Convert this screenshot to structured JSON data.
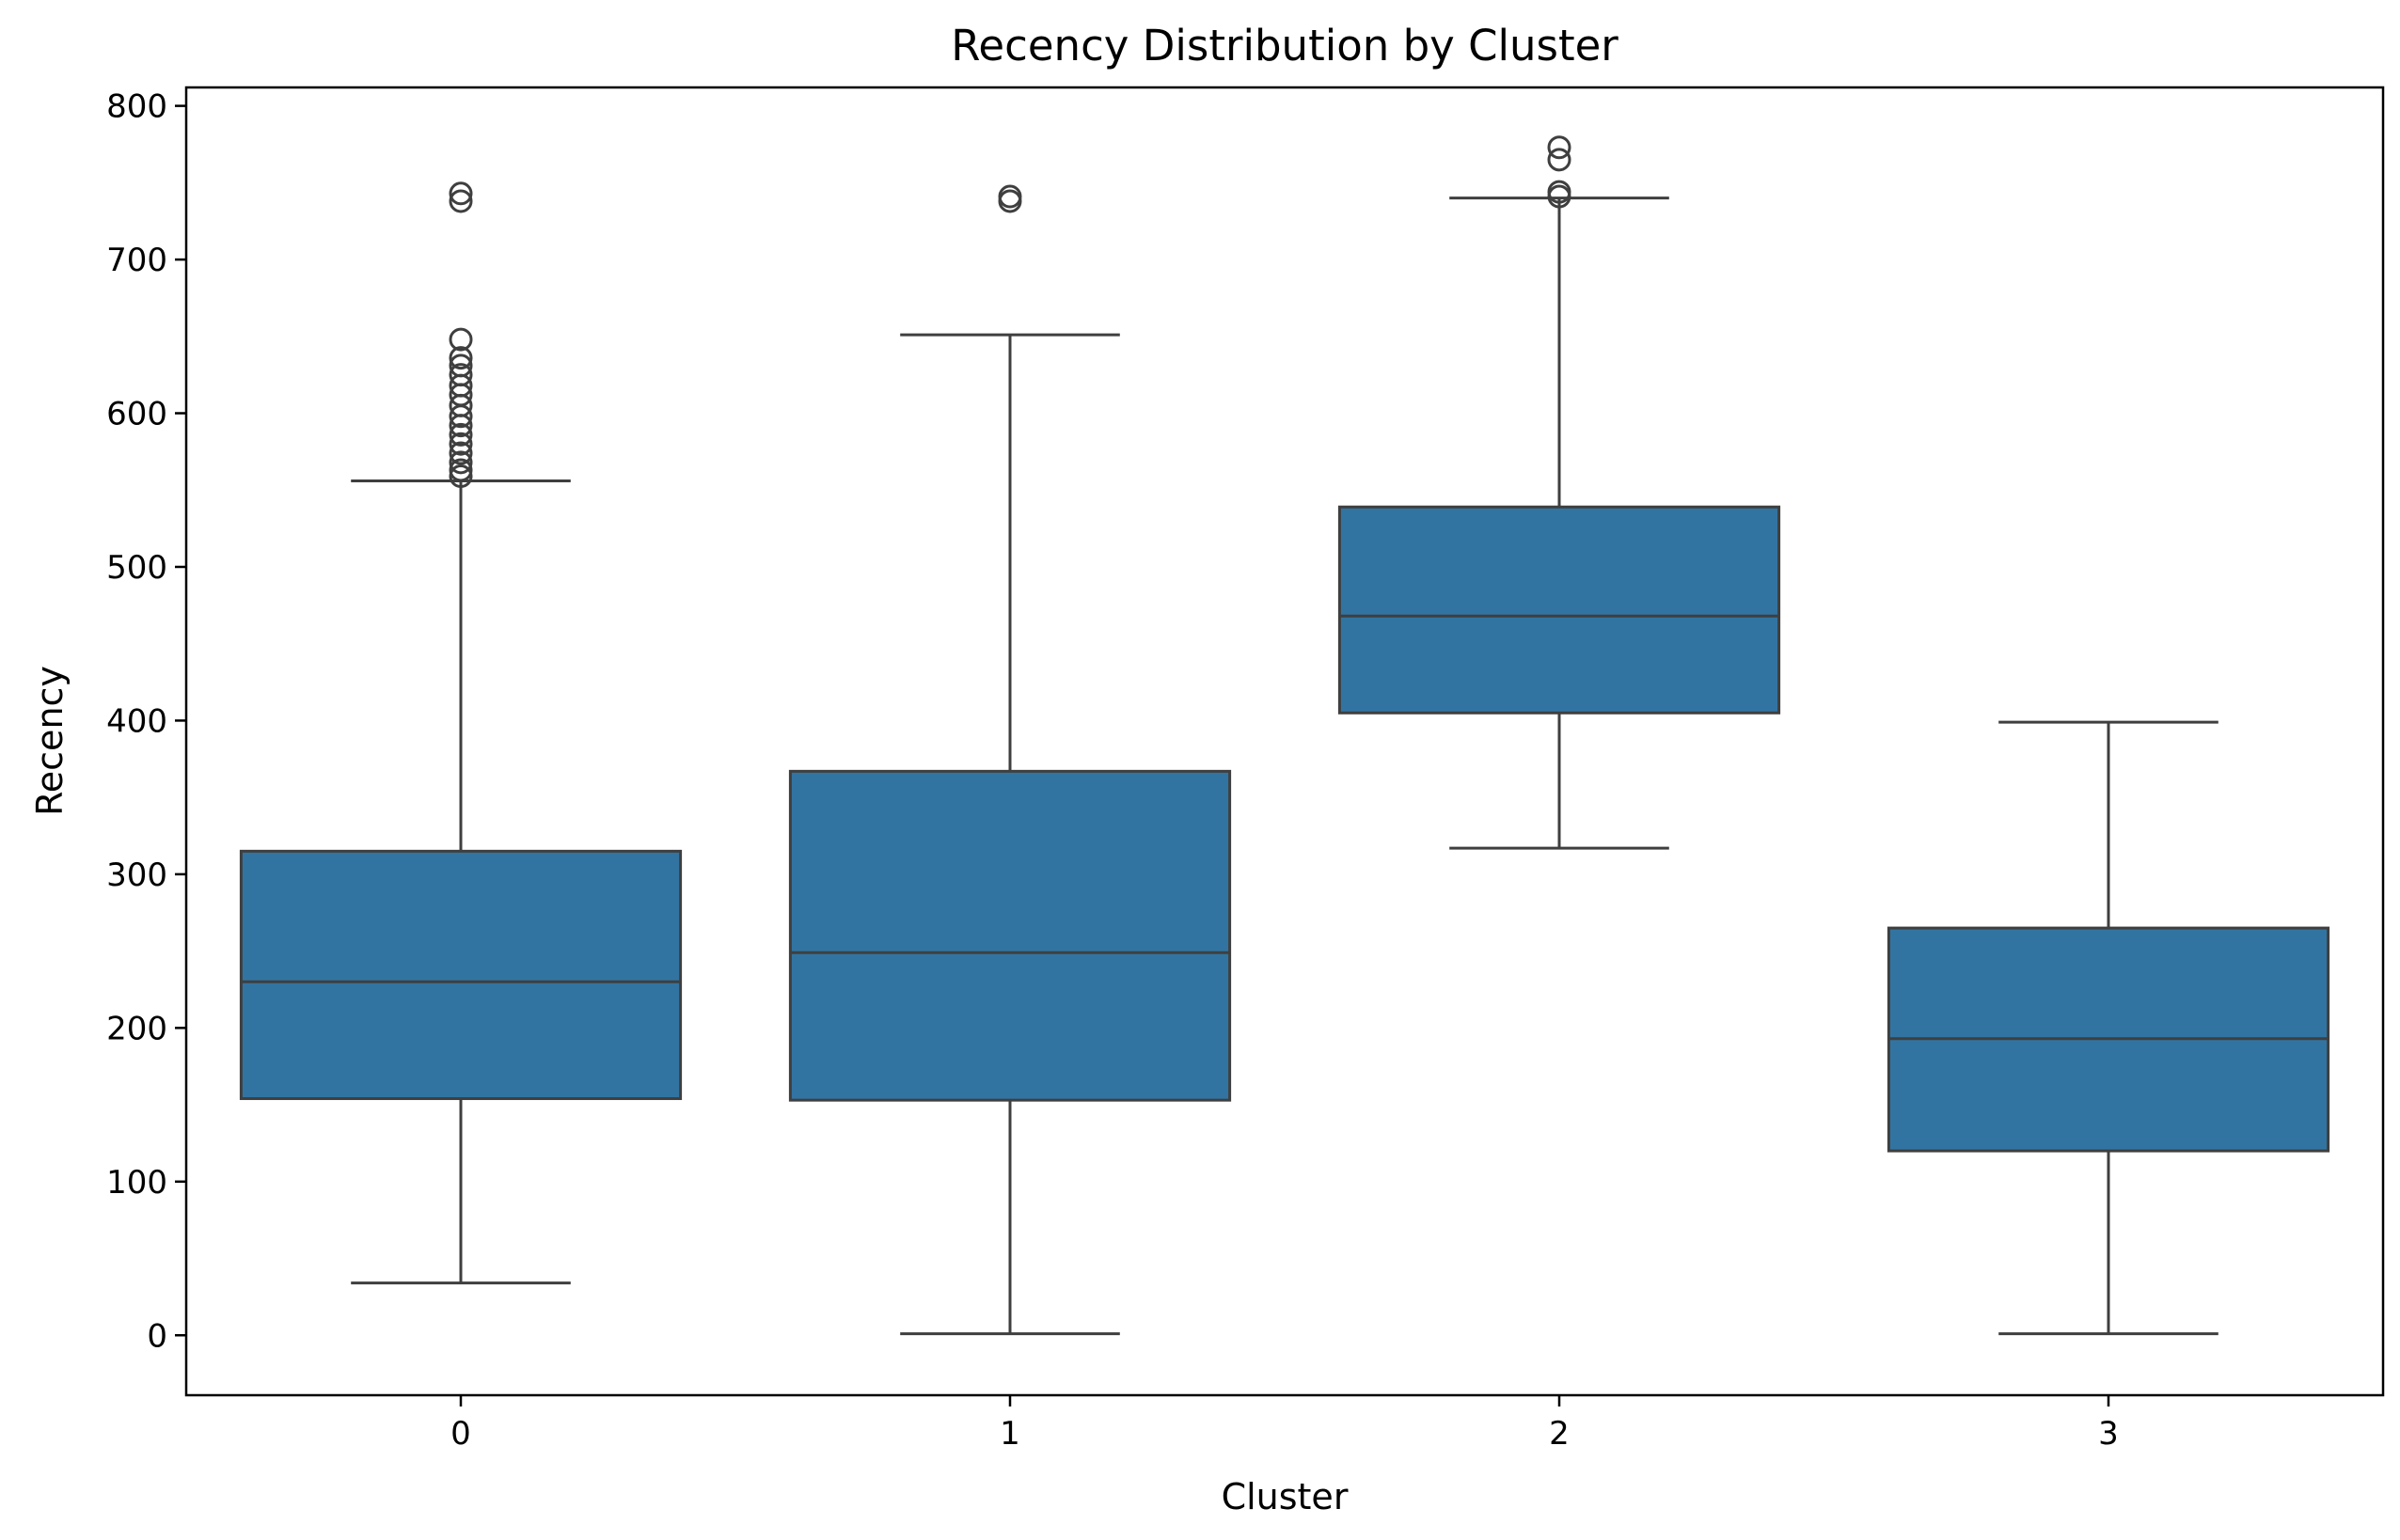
{
  "chart_data": {
    "type": "box",
    "title": "Recency Distribution by Cluster",
    "xlabel": "Cluster",
    "ylabel": "Recency",
    "ylim": [
      -39,
      812
    ],
    "yticks": [
      0,
      100,
      200,
      300,
      400,
      500,
      600,
      700,
      800
    ],
    "categories": [
      "0",
      "1",
      "2",
      "3"
    ],
    "box_color": "#3274a1",
    "line_color": "#3f3f3f",
    "boxes": [
      {
        "category": "0",
        "whisker_low": 34,
        "q1": 154,
        "median": 230,
        "q3": 315,
        "whisker_high": 556,
        "outliers": [
          738,
          743,
          648,
          636,
          631,
          625,
          618,
          612,
          605,
          598,
          592,
          586,
          580,
          574,
          568,
          563,
          559
        ]
      },
      {
        "category": "1",
        "whisker_low": 1,
        "q1": 153,
        "median": 249,
        "q3": 367,
        "whisker_high": 651,
        "outliers": [
          738,
          741
        ]
      },
      {
        "category": "2",
        "whisker_low": 317,
        "q1": 405,
        "median": 468,
        "q3": 539,
        "whisker_high": 740,
        "outliers": [
          741,
          744,
          765,
          773
        ]
      },
      {
        "category": "3",
        "whisker_low": 1,
        "q1": 120,
        "median": 193,
        "q3": 265,
        "whisker_high": 399,
        "outliers": []
      }
    ]
  }
}
